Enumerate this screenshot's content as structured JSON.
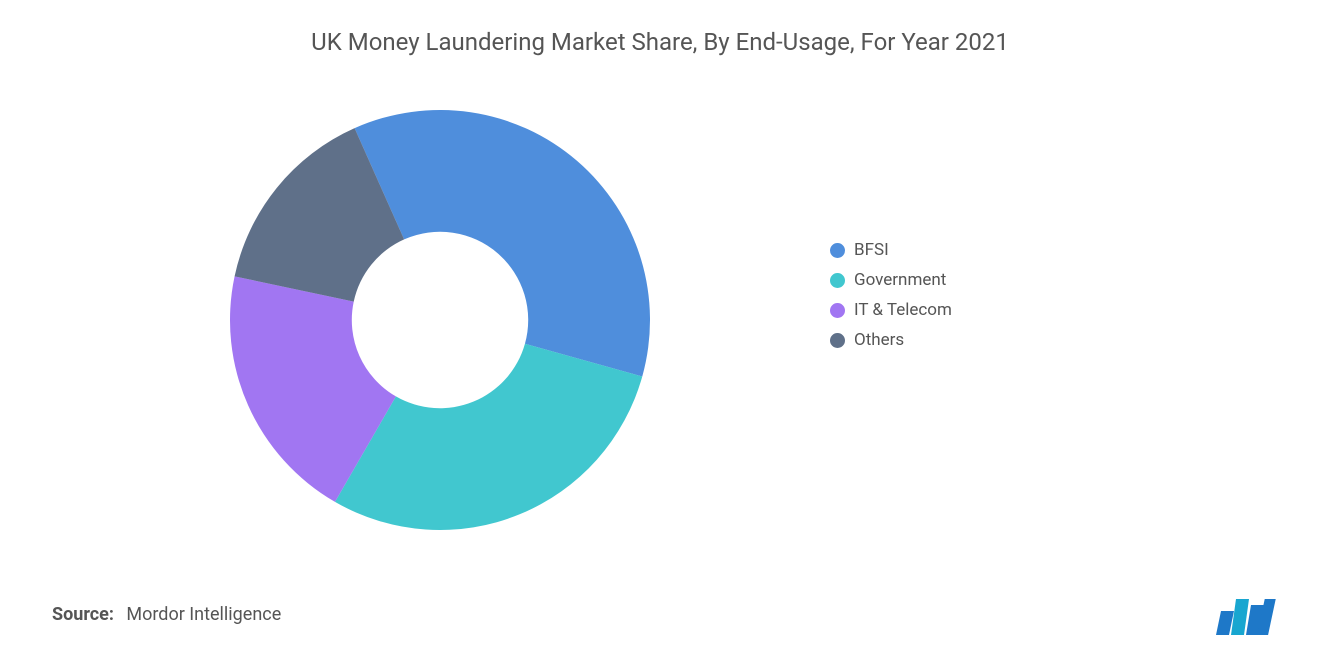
{
  "chart": {
    "type": "donut",
    "title": "UK Money Laundering Market Share, By End-Usage, For Year 2021",
    "title_fontsize": 24,
    "title_color": "#555555",
    "background_color": "#ffffff",
    "inner_radius_ratio": 0.42,
    "start_angle_deg": -24,
    "slices": [
      {
        "label": "BFSI",
        "value": 36,
        "color": "#4f8edc"
      },
      {
        "label": "Government",
        "value": 29,
        "color": "#41c7cf"
      },
      {
        "label": "IT &amp; Telecom",
        "value": 20,
        "color": "#a176f2"
      },
      {
        "label": "Others",
        "value": 15,
        "color": "#5f7089"
      }
    ],
    "legend_fontsize": 17,
    "legend_text_color": "#555555"
  },
  "source": {
    "label": "Source:",
    "text": "Mordor Intelligence",
    "fontsize": 18,
    "color": "#555555"
  },
  "logo": {
    "bar_colors": [
      "#1e78c8",
      "#18a6d0",
      "#1e78c8"
    ]
  }
}
